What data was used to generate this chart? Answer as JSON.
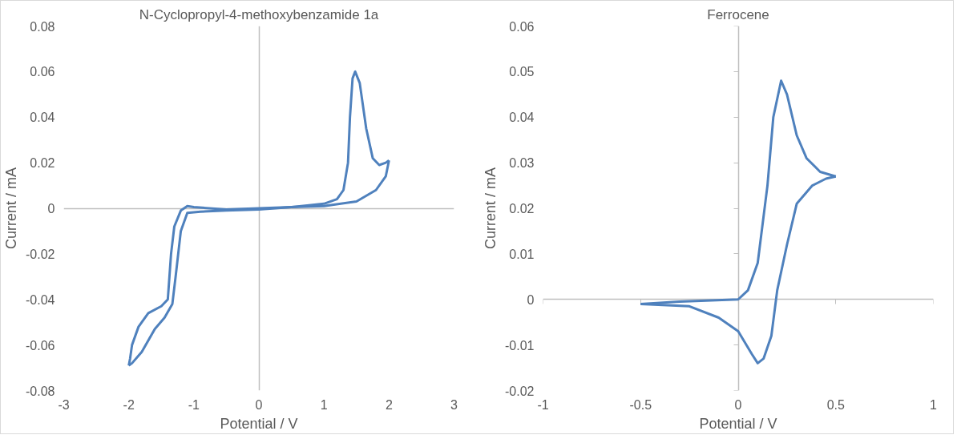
{
  "chart_data": [
    {
      "type": "line",
      "title": "N-Cyclopropyl-4-methoxybenzamide 1a",
      "xlabel": "Potential / V",
      "ylabel": "Current / mA",
      "xlim": [
        -3,
        3
      ],
      "ylim": [
        -0.08,
        0.08
      ],
      "xticks": [
        -3,
        -2,
        -1,
        0,
        1,
        2,
        3
      ],
      "yticks": [
        -0.08,
        -0.06,
        -0.04,
        -0.02,
        0,
        0.02,
        0.04,
        0.06,
        0.08
      ],
      "series": [
        {
          "color": "#4f81bd",
          "x": [
            -2.0,
            -1.98,
            -1.95,
            -1.85,
            -1.7,
            -1.5,
            -1.4,
            -1.35,
            -1.3,
            -1.2,
            -1.1,
            -1.0,
            -0.5,
            0,
            0.5,
            1.0,
            1.5,
            1.8,
            1.95,
            2.0
          ],
          "values": [
            -0.069,
            -0.066,
            -0.06,
            -0.052,
            -0.046,
            -0.043,
            -0.04,
            -0.02,
            -0.008,
            -0.001,
            0.001,
            0.0005,
            -0.0005,
            0,
            0.0005,
            0.001,
            0.003,
            0.008,
            0.014,
            0.021
          ]
        },
        {
          "color": "#4f81bd",
          "x": [
            2.0,
            1.95,
            1.85,
            1.75,
            1.65,
            1.55,
            1.48,
            1.44,
            1.4,
            1.37,
            1.3,
            1.2,
            1.0,
            0.5,
            0,
            -0.5,
            -0.9,
            -1.1,
            -1.2,
            -1.28,
            -1.33,
            -1.45,
            -1.6,
            -1.8,
            -1.95,
            -2.0
          ],
          "values": [
            0.021,
            0.02,
            0.019,
            0.022,
            0.035,
            0.055,
            0.06,
            0.057,
            0.04,
            0.02,
            0.008,
            0.004,
            0.002,
            0.0005,
            -0.0005,
            -0.001,
            -0.0015,
            -0.002,
            -0.01,
            -0.03,
            -0.042,
            -0.048,
            -0.053,
            -0.063,
            -0.068,
            -0.069
          ]
        }
      ]
    },
    {
      "type": "line",
      "title": "Ferrocene",
      "xlabel": "Potential / V",
      "ylabel": "Current / mA",
      "xlim": [
        -1,
        1
      ],
      "ylim": [
        -0.02,
        0.06
      ],
      "xticks": [
        -1,
        -0.5,
        0,
        0.5,
        1
      ],
      "yticks": [
        -0.02,
        -0.01,
        0,
        0.01,
        0.02,
        0.03,
        0.04,
        0.05,
        0.06
      ],
      "series": [
        {
          "color": "#4f81bd",
          "x": [
            -0.5,
            -0.3,
            0,
            0.05,
            0.1,
            0.15,
            0.18,
            0.22,
            0.25,
            0.3,
            0.35,
            0.42,
            0.5
          ],
          "values": [
            -0.001,
            -0.0005,
            0,
            0.002,
            0.008,
            0.025,
            0.04,
            0.048,
            0.045,
            0.036,
            0.031,
            0.028,
            0.027
          ]
        },
        {
          "color": "#4f81bd",
          "x": [
            0.5,
            0.45,
            0.38,
            0.3,
            0.25,
            0.2,
            0.17,
            0.13,
            0.1,
            0.07,
            0.0,
            -0.1,
            -0.25,
            -0.5
          ],
          "values": [
            0.027,
            0.0265,
            0.025,
            0.021,
            0.012,
            0.002,
            -0.008,
            -0.013,
            -0.014,
            -0.012,
            -0.007,
            -0.004,
            -0.0015,
            -0.001
          ]
        }
      ]
    }
  ]
}
